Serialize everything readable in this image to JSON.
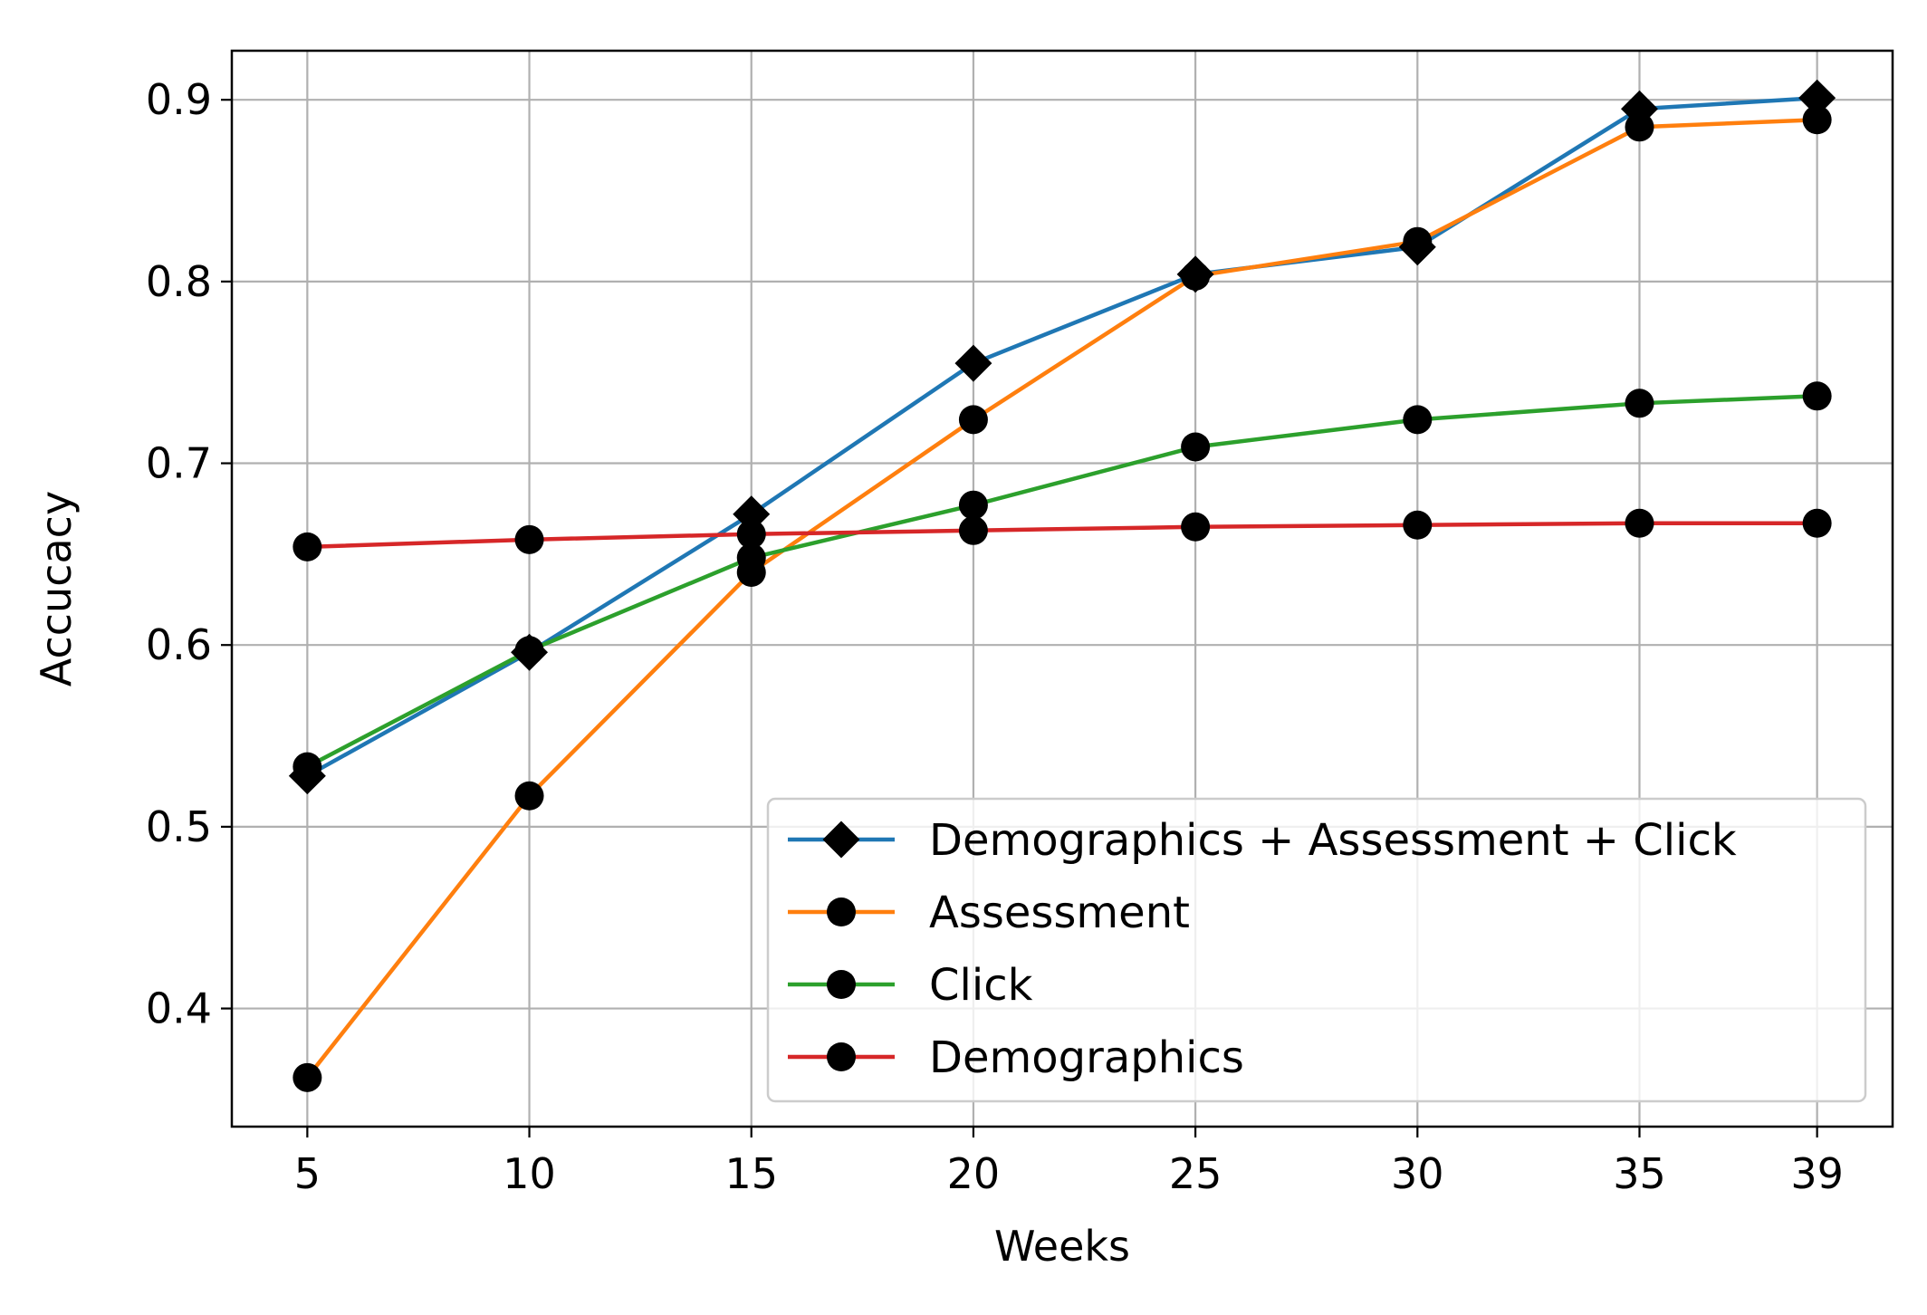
{
  "chart_data": {
    "type": "line",
    "xlabel": "Weeks",
    "ylabel": "Accucacy",
    "x": [
      5,
      10,
      15,
      20,
      25,
      30,
      35,
      39
    ],
    "xticks": [
      "5",
      "10",
      "15",
      "20",
      "25",
      "30",
      "35",
      "39"
    ],
    "yticks": [
      "0.4",
      "0.5",
      "0.6",
      "0.7",
      "0.8",
      "0.9"
    ],
    "xlim": [
      3.3,
      40.7
    ],
    "ylim": [
      0.335,
      0.927
    ],
    "grid": true,
    "legend_position": "lower-right",
    "series": [
      {
        "name": "Demographics + Assessment + Click",
        "color": "#1f77b4",
        "marker": "diamond",
        "values": [
          0.528,
          0.596,
          0.672,
          0.755,
          0.804,
          0.819,
          0.895,
          0.901
        ]
      },
      {
        "name": "Assessment",
        "color": "#ff7f0e",
        "marker": "circle",
        "values": [
          0.362,
          0.517,
          0.64,
          0.724,
          0.803,
          0.822,
          0.885,
          0.889
        ]
      },
      {
        "name": "Click",
        "color": "#2ca02c",
        "marker": "circle",
        "values": [
          0.533,
          0.597,
          0.648,
          0.677,
          0.709,
          0.724,
          0.733,
          0.737
        ]
      },
      {
        "name": "Demographics",
        "color": "#d62728",
        "marker": "circle",
        "values": [
          0.654,
          0.658,
          0.661,
          0.663,
          0.665,
          0.666,
          0.667,
          0.667
        ]
      }
    ]
  }
}
